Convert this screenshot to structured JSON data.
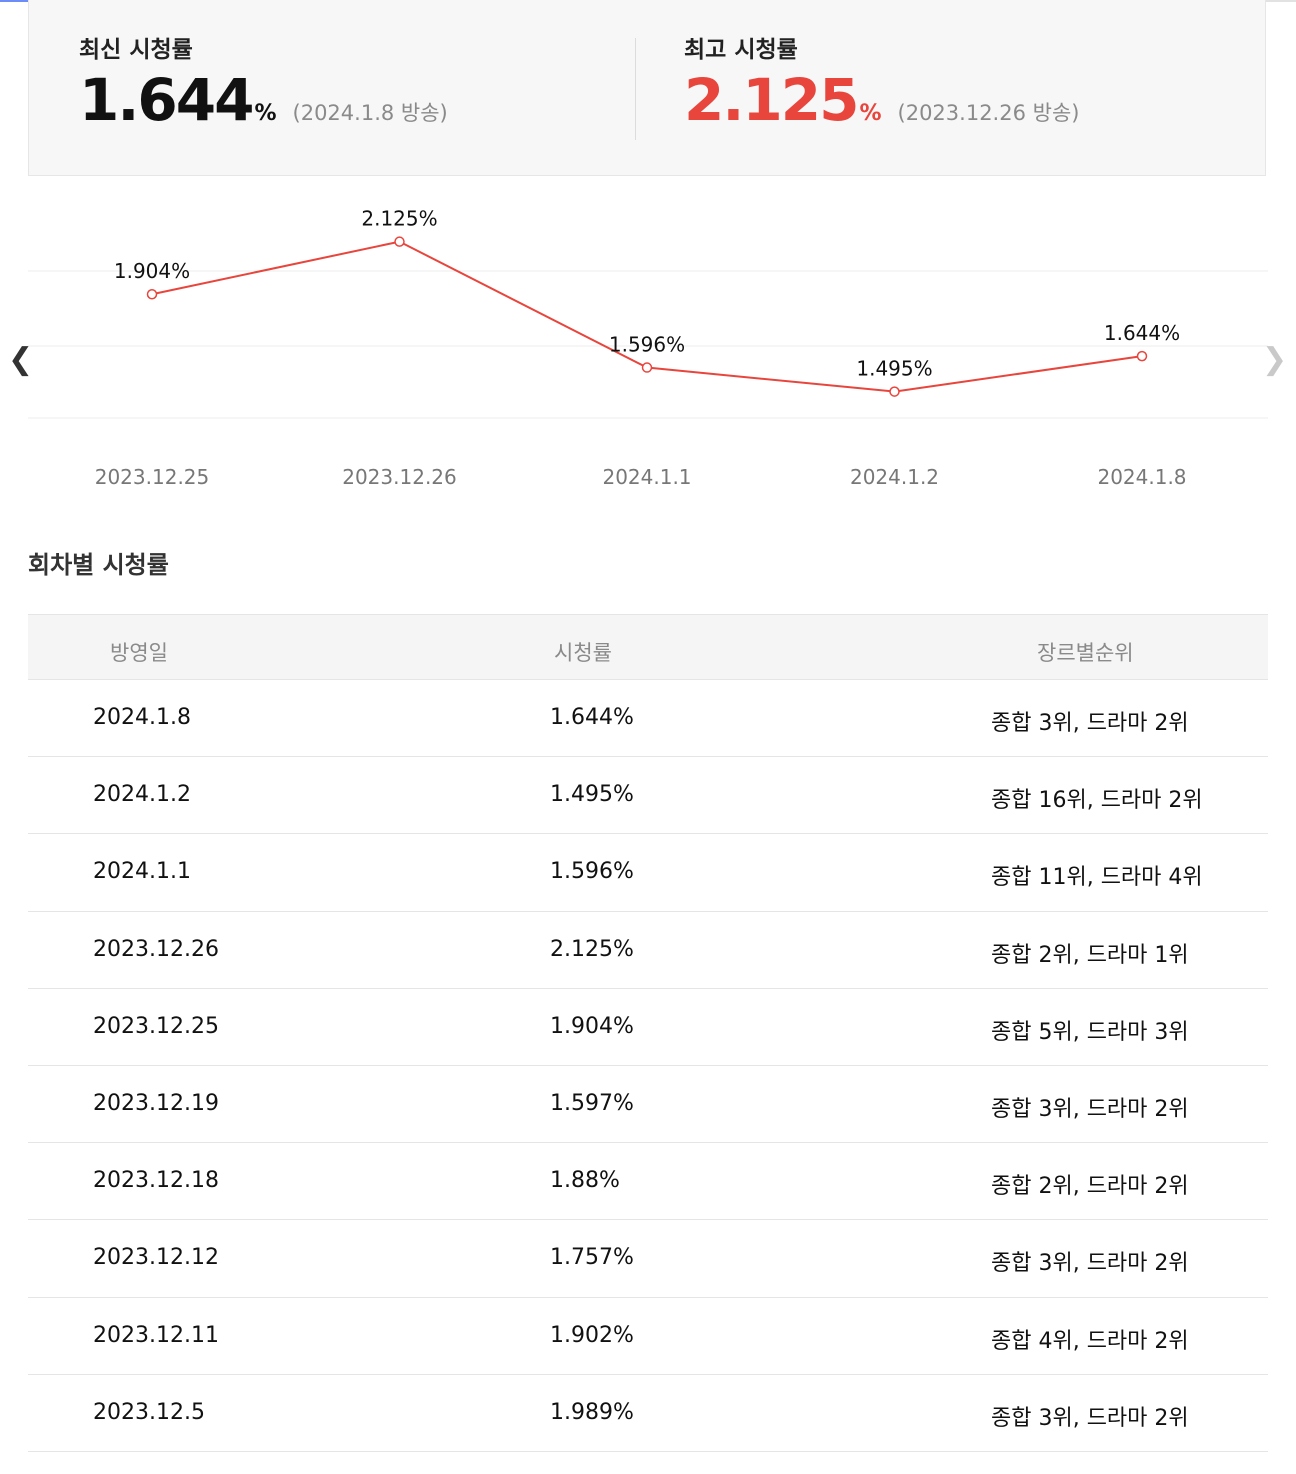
{
  "summary": {
    "latest": {
      "label": "최신 시청률",
      "value": "1.644",
      "unit": "%",
      "note": "(2024.1.8 방송)"
    },
    "best": {
      "label": "최고 시청률",
      "value": "2.125",
      "unit": "%",
      "note": "(2023.12.26 방송)"
    }
  },
  "chart_data": {
    "type": "line",
    "categories": [
      "2023.12.25",
      "2023.12.26",
      "2024.1.1",
      "2024.1.2",
      "2024.1.8"
    ],
    "series": [
      {
        "values": [
          1.904,
          2.125,
          1.596,
          1.495,
          1.644
        ]
      }
    ],
    "value_labels": [
      "1.904%",
      "2.125%",
      "1.596%",
      "1.495%",
      "1.644%"
    ],
    "ylim": [
      1.3,
      2.3
    ],
    "grid": true,
    "line_color": "#e8453c"
  },
  "episodes": {
    "title": "회차별 시청률",
    "headers": [
      "방영일",
      "시청률",
      "장르별순위"
    ],
    "rows": [
      [
        "2024.1.8",
        "1.644%",
        "종합 3위, 드라마 2위"
      ],
      [
        "2024.1.2",
        "1.495%",
        "종합 16위, 드라마 2위"
      ],
      [
        "2024.1.1",
        "1.596%",
        "종합 11위, 드라마 4위"
      ],
      [
        "2023.12.26",
        "2.125%",
        "종합 2위, 드라마 1위"
      ],
      [
        "2023.12.25",
        "1.904%",
        "종합 5위, 드라마 3위"
      ],
      [
        "2023.12.19",
        "1.597%",
        "종합 3위, 드라마 2위"
      ],
      [
        "2023.12.18",
        "1.88%",
        "종합 2위, 드라마 2위"
      ],
      [
        "2023.12.12",
        "1.757%",
        "종합 3위, 드라마 2위"
      ],
      [
        "2023.12.11",
        "1.902%",
        "종합 4위, 드라마 2위"
      ],
      [
        "2023.12.5",
        "1.989%",
        "종합 3위, 드라마 2위"
      ]
    ]
  },
  "icons": {
    "prev": "chevron-left-icon",
    "next": "chevron-right-icon"
  }
}
